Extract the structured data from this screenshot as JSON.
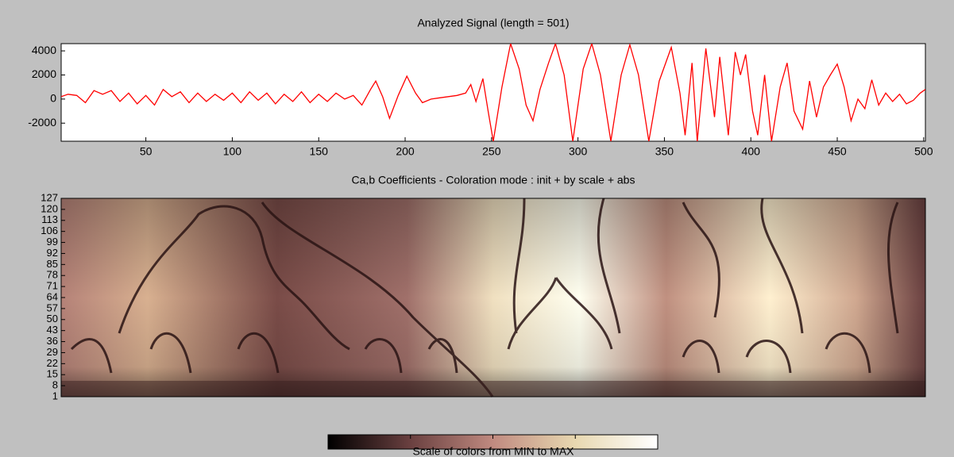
{
  "chart_data": [
    {
      "type": "line",
      "title": "Analyzed Signal  (length = 501)",
      "xlim": [
        1,
        501
      ],
      "ylim": [
        -3500,
        4600
      ],
      "xticks": [
        50,
        100,
        150,
        200,
        250,
        300,
        350,
        400,
        450,
        500
      ],
      "yticks": [
        -2000,
        0,
        2000,
        4000
      ],
      "series": [
        {
          "name": null,
          "color": "#ff0000",
          "x": [
            1,
            5,
            10,
            15,
            20,
            25,
            30,
            35,
            40,
            45,
            50,
            55,
            60,
            65,
            70,
            75,
            80,
            85,
            90,
            95,
            100,
            105,
            110,
            115,
            120,
            125,
            130,
            135,
            140,
            145,
            150,
            155,
            160,
            165,
            170,
            175,
            180,
            183,
            187,
            191,
            196,
            201,
            206,
            210,
            215,
            220,
            225,
            230,
            235,
            238,
            241,
            245,
            248,
            251,
            256,
            261,
            266,
            270,
            274,
            278,
            283,
            287,
            292,
            297,
            303,
            308,
            313,
            319,
            325,
            330,
            335,
            341,
            347,
            354,
            359,
            362,
            366,
            369,
            374,
            379,
            382,
            387,
            391,
            394,
            397,
            401,
            404,
            408,
            412,
            417,
            421,
            425,
            430,
            434,
            438,
            442,
            446,
            450,
            454,
            458,
            462,
            466,
            470,
            474,
            478,
            482,
            486,
            490,
            494,
            498,
            501
          ],
          "values": [
            200,
            400,
            300,
            -300,
            700,
            400,
            700,
            -200,
            500,
            -400,
            300,
            -500,
            800,
            200,
            600,
            -300,
            500,
            -200,
            400,
            -100,
            500,
            -300,
            600,
            -100,
            500,
            -400,
            400,
            -200,
            600,
            -300,
            400,
            -200,
            500,
            0,
            300,
            -500,
            800,
            1500,
            200,
            -1600,
            300,
            1900,
            500,
            -300,
            0,
            100,
            200,
            300,
            500,
            1200,
            -200,
            1700,
            -1000,
            -3500,
            1000,
            4600,
            2500,
            -500,
            -1800,
            800,
            3000,
            4600,
            2000,
            -3500,
            2500,
            4600,
            2000,
            -3500,
            2000,
            4500,
            2000,
            -3500,
            1500,
            4300,
            500,
            -3000,
            3000,
            -3500,
            4200,
            -1500,
            3500,
            -3000,
            3900,
            2000,
            3700,
            -1000,
            -3000,
            2000,
            -3500,
            1000,
            3000,
            -1000,
            -2500,
            1500,
            -1500,
            1000,
            2000,
            2900,
            1000,
            -1800,
            0,
            -800,
            1600,
            -500,
            500,
            -200,
            400,
            -400,
            -100,
            500,
            800
          ]
        }
      ]
    },
    {
      "type": "heatmap",
      "title": "Ca,b Coefficients  - Coloration mode : init + by scale + abs",
      "ylim": [
        1,
        127
      ],
      "yticks": [
        1,
        8,
        15,
        22,
        29,
        36,
        43,
        50,
        57,
        64,
        71,
        78,
        85,
        92,
        99,
        106,
        113,
        120,
        127
      ],
      "colorbar_label": "Scale of colors from MIN to MAX"
    }
  ]
}
